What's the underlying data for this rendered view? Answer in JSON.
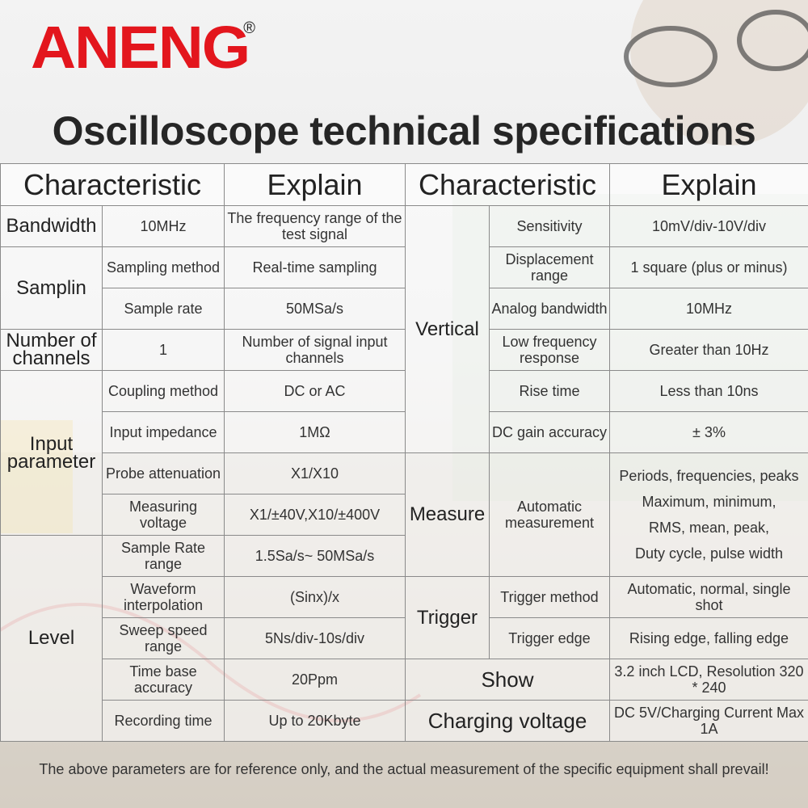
{
  "brand": {
    "name": "ANENG",
    "registered": "®"
  },
  "title": "Oscilloscope technical specifications",
  "headers": {
    "characteristic": "Characteristic",
    "explain": "Explain"
  },
  "left": {
    "bandwidth": {
      "name": "Bandwidth",
      "value": "10MHz",
      "explain": "The frequency range of the test signal"
    },
    "sampling": {
      "name": "Samplin",
      "rows": [
        {
          "name": "Sampling method",
          "explain": "Real-time sampling"
        },
        {
          "name": "Sample rate",
          "explain": "50MSa/s"
        }
      ]
    },
    "channels": {
      "name": "Number of channels",
      "value": "1",
      "explain": "Number of signal input channels"
    },
    "input": {
      "name": "Input parameter",
      "rows": [
        {
          "name": "Coupling method",
          "explain": "DC or AC"
        },
        {
          "name": "Input impedance",
          "explain": "1MΩ"
        },
        {
          "name": "Probe attenuation",
          "explain": "X1/X10"
        },
        {
          "name": "Measuring voltage",
          "explain": "X1/±40V,X10/±400V"
        }
      ]
    },
    "level": {
      "name": "Level",
      "rows": [
        {
          "name": "Sample Rate range",
          "explain": "1.5Sa/s~ 50MSa/s"
        },
        {
          "name": "Waveform interpolation",
          "explain": "(Sinx)/x"
        },
        {
          "name": "Sweep speed range",
          "explain": "5Ns/div-10s/div"
        },
        {
          "name": "Time base accuracy",
          "explain": "20Ppm"
        },
        {
          "name": "Recording time",
          "explain": "Up to 20Kbyte"
        }
      ]
    }
  },
  "right": {
    "vertical": {
      "name": "Vertical",
      "rows": [
        {
          "name": "Sensitivity",
          "explain": "10mV/div-10V/div"
        },
        {
          "name": "Displacement range",
          "explain": "1 square (plus or minus)"
        },
        {
          "name": "Analog bandwidth",
          "explain": "10MHz"
        },
        {
          "name": "Low frequency response",
          "explain": "Greater than 10Hz"
        },
        {
          "name": "Rise time",
          "explain": "Less than 10ns"
        },
        {
          "name": "DC gain accuracy",
          "explain": "± 3%"
        }
      ]
    },
    "measure": {
      "name": "Measure",
      "sub": "Automatic measurement",
      "lines": [
        "Periods, frequencies, peaks",
        "Maximum, minimum,",
        "RMS, mean, peak,",
        "Duty cycle, pulse width"
      ]
    },
    "trigger": {
      "name": "Trigger",
      "rows": [
        {
          "name": "Trigger method",
          "explain": "Automatic, normal, single shot"
        },
        {
          "name": "Trigger edge",
          "explain": "Rising edge, falling edge"
        }
      ]
    },
    "show": {
      "name": "Show",
      "explain": "3.2 inch LCD, Resolution 320 * 240"
    },
    "charging": {
      "name": "Charging voltage",
      "explain": "DC 5V/Charging Current Max 1A"
    }
  },
  "note": "The above parameters are for reference only, and the actual measurement of the specific equipment shall prevail!"
}
